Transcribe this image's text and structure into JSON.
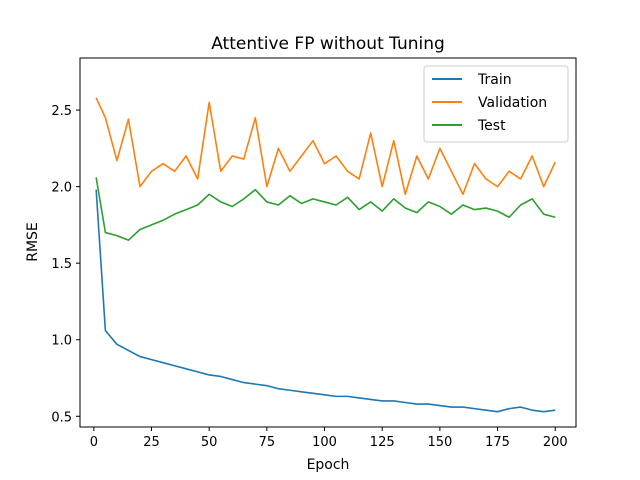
{
  "chart_data": {
    "type": "line",
    "title": "Attentive FP without Tuning",
    "xlabel": "Epoch",
    "ylabel": "RMSE",
    "xlim": [
      -6,
      209
    ],
    "ylim": [
      0.43,
      2.84
    ],
    "xticks": [
      0,
      25,
      50,
      75,
      100,
      125,
      150,
      175,
      200
    ],
    "yticks": [
      0.5,
      1.0,
      1.5,
      2.0,
      2.5
    ],
    "xtick_labels": [
      "0",
      "25",
      "50",
      "75",
      "100",
      "125",
      "150",
      "175",
      "200"
    ],
    "ytick_labels": [
      "0.5",
      "1.0",
      "1.5",
      "2.0",
      "2.5"
    ],
    "grid": false,
    "legend_position": "top-right",
    "x": [
      1,
      5,
      10,
      15,
      20,
      25,
      30,
      35,
      40,
      45,
      50,
      55,
      60,
      65,
      70,
      75,
      80,
      85,
      90,
      95,
      100,
      105,
      110,
      115,
      120,
      125,
      130,
      135,
      140,
      145,
      150,
      155,
      160,
      165,
      170,
      175,
      180,
      185,
      190,
      195,
      200
    ],
    "series": [
      {
        "name": "Train",
        "color": "#1f77b4",
        "values": [
          1.98,
          1.06,
          0.97,
          0.93,
          0.89,
          0.87,
          0.85,
          0.83,
          0.81,
          0.79,
          0.77,
          0.76,
          0.74,
          0.72,
          0.71,
          0.7,
          0.68,
          0.67,
          0.66,
          0.65,
          0.64,
          0.63,
          0.63,
          0.62,
          0.61,
          0.6,
          0.6,
          0.59,
          0.58,
          0.58,
          0.57,
          0.56,
          0.56,
          0.55,
          0.54,
          0.53,
          0.55,
          0.56,
          0.54,
          0.53,
          0.54
        ]
      },
      {
        "name": "Validation",
        "color": "#ff7f0e",
        "values": [
          2.58,
          2.45,
          2.17,
          2.44,
          2.0,
          2.1,
          2.15,
          2.1,
          2.2,
          2.05,
          2.55,
          2.1,
          2.2,
          2.18,
          2.45,
          2.0,
          2.25,
          2.1,
          2.2,
          2.3,
          2.15,
          2.2,
          2.1,
          2.05,
          2.35,
          2.0,
          2.3,
          1.95,
          2.2,
          2.05,
          2.25,
          2.1,
          1.95,
          2.15,
          2.05,
          2.0,
          2.1,
          2.05,
          2.2,
          2.0,
          2.16
        ]
      },
      {
        "name": "Test",
        "color": "#2ca02c",
        "values": [
          2.06,
          1.7,
          1.68,
          1.65,
          1.72,
          1.75,
          1.78,
          1.82,
          1.85,
          1.88,
          1.95,
          1.9,
          1.87,
          1.92,
          1.98,
          1.9,
          1.88,
          1.94,
          1.89,
          1.92,
          1.9,
          1.88,
          1.93,
          1.85,
          1.9,
          1.84,
          1.92,
          1.86,
          1.83,
          1.9,
          1.87,
          1.82,
          1.88,
          1.85,
          1.86,
          1.84,
          1.8,
          1.88,
          1.92,
          1.82,
          1.8
        ]
      }
    ]
  }
}
